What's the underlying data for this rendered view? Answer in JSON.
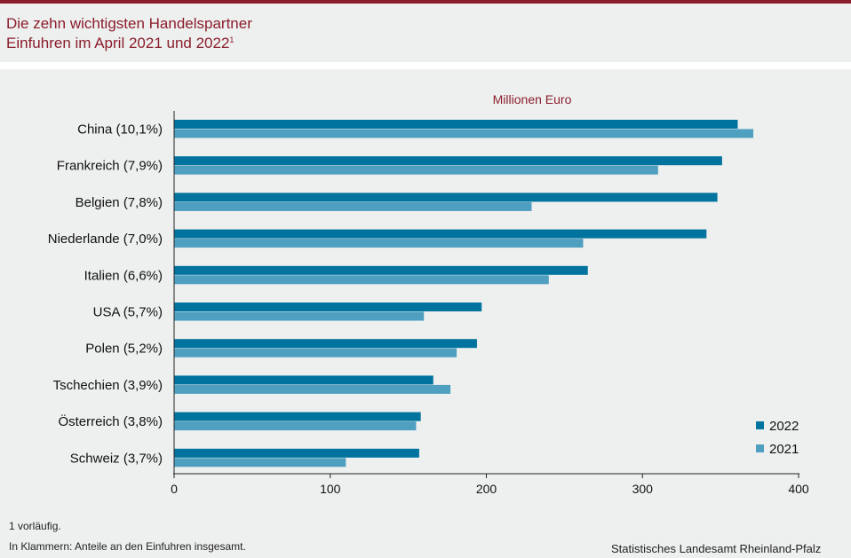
{
  "header": {
    "title_line1": "Die zehn wichtigsten Handelspartner",
    "title_line2": "Einfuhren im April 2021 und 2022",
    "title_footnote_mark": "1"
  },
  "colors": {
    "accent": "#8b1d2c",
    "series_2022": "#00739e",
    "series_2021": "#4f9fc1"
  },
  "chart_data": {
    "type": "bar",
    "orientation": "horizontal",
    "unit_label": "Millionen Euro",
    "categories": [
      "China (10,1%)",
      "Frankreich (7,9%)",
      "Belgien (7,8%)",
      "Niederlande (7,0%)",
      "Italien (6,6%)",
      "USA (5,7%)",
      "Polen (5,2%)",
      "Tschechien (3,9%)",
      "Österreich (3,8%)",
      "Schweiz (3,7%)"
    ],
    "series": [
      {
        "name": "2022",
        "color": "#00739e",
        "values": [
          361,
          351,
          348,
          341,
          265,
          197,
          194,
          166,
          158,
          157
        ]
      },
      {
        "name": "2021",
        "color": "#4f9fc1",
        "values": [
          371,
          310,
          229,
          262,
          240,
          160,
          181,
          177,
          155,
          110
        ]
      }
    ],
    "xlim": [
      0,
      400
    ],
    "xticks": [
      "0",
      "100",
      "200",
      "300",
      "400"
    ],
    "legend_position": "bottom-right"
  },
  "footnotes": {
    "note1": "1 vorläufig.",
    "note2": "In Klammern: Anteile an den Einfuhren insgesamt.",
    "source": "Statistisches Landesamt Rheinland-Pfalz"
  }
}
